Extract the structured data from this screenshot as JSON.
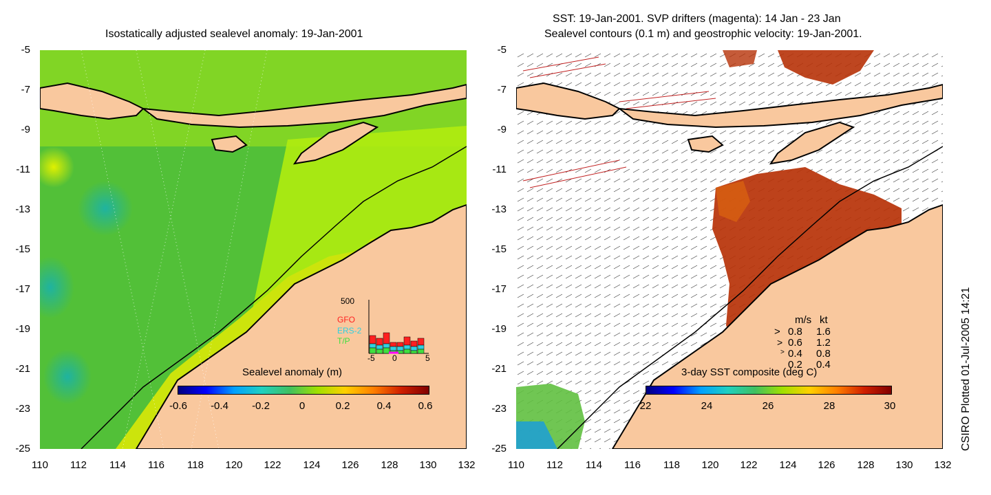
{
  "left_panel": {
    "title": "Isostatically adjusted sealevel anomaly: 19-Jan-2001",
    "y_ticks": [
      "-5",
      "-7",
      "-9",
      "-11",
      "-13",
      "-15",
      "-17",
      "-19",
      "-21",
      "-23",
      "-25"
    ],
    "x_ticks": [
      "110",
      "112",
      "114",
      "116",
      "118",
      "120",
      "122",
      "124",
      "126",
      "128",
      "130",
      "132"
    ],
    "colorbar": {
      "label": "Sealevel anomaly (m)",
      "ticks": [
        "-0.6",
        "-0.4",
        "-0.2",
        "0",
        "0.2",
        "0.4",
        "0.6"
      ]
    },
    "inset": {
      "y_max": "500",
      "legend": [
        "GFO",
        "ERS-2",
        "T/P"
      ],
      "x_ticks": [
        "-5",
        "0",
        "5"
      ]
    }
  },
  "right_panel": {
    "title_line1": "SST: 19-Jan-2001. SVP drifters (magenta): 14 Jan - 23 Jan",
    "title_line2": "Sealevel contours (0.1 m) and geostrophic velocity: 19-Jan-2001.",
    "y_ticks": [
      "-5",
      "-7",
      "-9",
      "-11",
      "-13",
      "-15",
      "-17",
      "-19",
      "-21",
      "-23",
      "-25"
    ],
    "x_ticks": [
      "110",
      "112",
      "114",
      "116",
      "118",
      "120",
      "122",
      "124",
      "126",
      "128",
      "130",
      "132"
    ],
    "colorbar": {
      "label": "3-day SST composite (deg C)",
      "ticks": [
        "22",
        "24",
        "26",
        "28",
        "30"
      ]
    },
    "velocity_legend": {
      "header_ms": "m/s",
      "header_kt": "kt",
      "rows": [
        {
          "ms": "0.8",
          "kt": "1.6"
        },
        {
          "ms": "0.6",
          "kt": "1.2"
        },
        {
          "ms": "0.4",
          "kt": "0.8"
        },
        {
          "ms": "0.2",
          "kt": "0.4"
        }
      ]
    }
  },
  "credit": "CSIRO Plotted 01-Jul-2005 14:21",
  "colors": {
    "land": "#f9c89e",
    "ocean_mid": "#7ed320",
    "ocean_high": "#c6f000",
    "ocean_low": "#28b25a",
    "sst_warm": "#b73208"
  }
}
